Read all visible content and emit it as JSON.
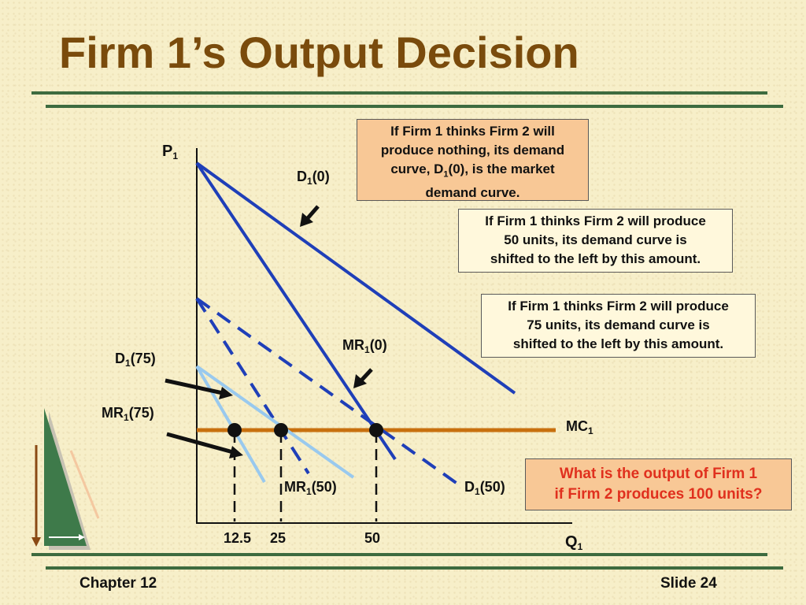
{
  "title": "Firm 1’s Output Decision",
  "axes": {
    "y_label": "P",
    "y_sub": "1",
    "x_label": "Q",
    "x_sub": "1"
  },
  "curve_labels": {
    "d0": "D",
    "d0_sub": "1",
    "d0_arg": "(0)",
    "mr0": "MR",
    "mr0_sub": "1",
    "mr0_arg": "(0)",
    "d75": "D",
    "d75_sub": "1",
    "d75_arg": "(75)",
    "mr75": "MR",
    "mr75_sub": "1",
    "mr75_arg": "(75)",
    "mr50": "MR",
    "mr50_sub": "1",
    "mr50_arg": "(50)",
    "d50": "D",
    "d50_sub": "1",
    "d50_arg": "(50)",
    "mc": "MC",
    "mc_sub": "1"
  },
  "x_ticks": [
    "12.5",
    "25",
    "50"
  ],
  "callouts": {
    "box1_l1": "If Firm 1 thinks Firm 2 will",
    "box1_l2": "produce nothing, its demand",
    "box1_l3a": "curve, D",
    "box1_l3sub": "1",
    "box1_l3b": "(0), is the market",
    "box1_l4": "demand curve.",
    "box2_l1": "If Firm 1 thinks Firm 2 will produce",
    "box2_l2": "50 units, its demand curve is",
    "box2_l3": "shifted to the left by this amount.",
    "box3_l1": "If Firm 1 thinks Firm 2 will produce",
    "box3_l2": "75 units, its demand curve is",
    "box3_l3": "shifted to the left by this amount.",
    "question_l1": "What is the output of Firm 1",
    "question_l2": "if Firm 2 produces 100 units?"
  },
  "footer": {
    "left": "Chapter 12",
    "right": "Slide 24"
  },
  "colors": {
    "title": "#7a4b0c",
    "rule": "#3d6b3f",
    "dark_blue": "#1f3fb8",
    "light_blue": "#99c9ee",
    "mc": "#c8700e",
    "question": "#e0301e",
    "box_peach": "#f8c896"
  }
}
